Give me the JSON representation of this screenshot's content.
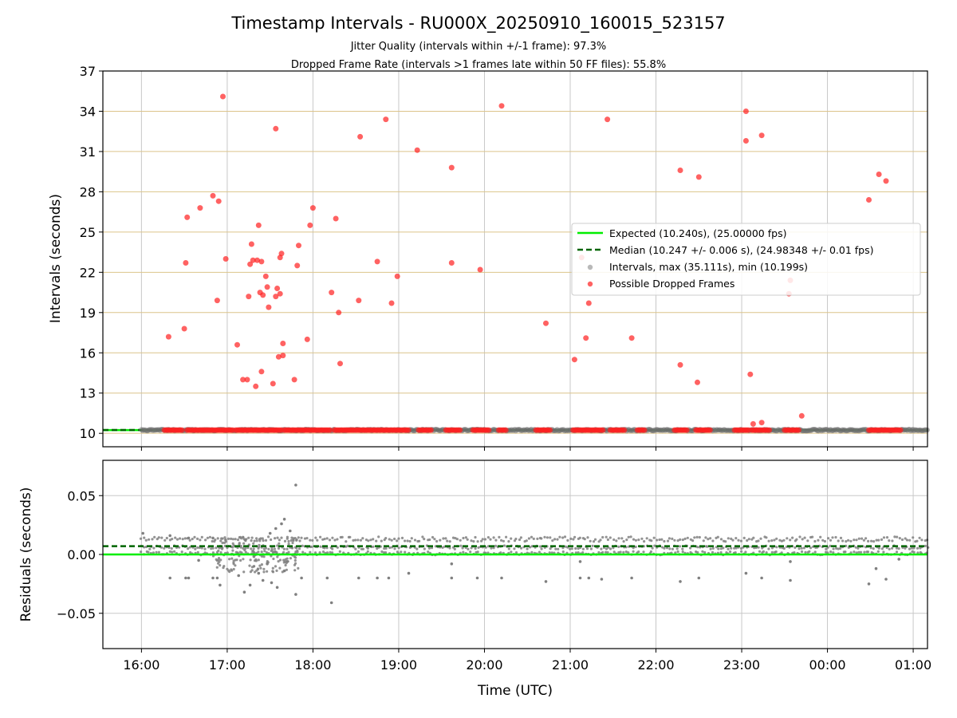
{
  "chart_data": {
    "type": "scatter",
    "title": "Timestamp Intervals - RU000X_20250910_160015_523157",
    "subtitle_lines": [
      "Jitter Quality (intervals within +/-1 frame): 97.3%",
      "Dropped Frame Rate (intervals >1 frames late within 50 FF files): 55.8%"
    ],
    "xlabel": "Time (UTC)",
    "x_range": [
      "15:33",
      "01:10"
    ],
    "x_ticks": [
      "16:00",
      "17:00",
      "18:00",
      "19:00",
      "20:00",
      "21:00",
      "22:00",
      "23:00",
      "00:00",
      "01:00"
    ],
    "top_panel": {
      "ylabel": "Intervals (seconds)",
      "ylim": [
        9.0,
        37.0
      ],
      "y_ticks": [
        "10",
        "13",
        "16",
        "19",
        "22",
        "25",
        "28",
        "31",
        "34",
        "37"
      ],
      "grid": "x grey, y goldenrod",
      "legend_position": "center-right",
      "expected_interval": 10.24,
      "median_interval": 10.247,
      "series": [
        {
          "name": "Expected (10.240s), (25.00000 fps)",
          "kind": "line",
          "color": "#00ee00",
          "y": 10.24
        },
        {
          "name": "Median (10.247 +/- 0.006 s), (24.98348 +/- 0.01 fps)",
          "kind": "dashed-line",
          "color": "#006400",
          "y": 10.247
        },
        {
          "name": "Intervals, max (35.111s), min (10.199s)",
          "kind": "scatter",
          "color": "#808080",
          "x_range": [
            "16:00",
            "01:10"
          ],
          "y": 10.24
        },
        {
          "name": "Possible Dropped Frames",
          "kind": "scatter",
          "color": "#ff2020",
          "points": [
            [
              "16:19",
              17.2
            ],
            [
              "16:30",
              17.8
            ],
            [
              "16:31",
              22.7
            ],
            [
              "16:32",
              26.1
            ],
            [
              "16:41",
              26.8
            ],
            [
              "16:50",
              27.7
            ],
            [
              "16:53",
              19.9
            ],
            [
              "16:54",
              27.3
            ],
            [
              "16:57",
              35.1
            ],
            [
              "16:59",
              23.0
            ],
            [
              "17:07",
              16.6
            ],
            [
              "17:11",
              14.0
            ],
            [
              "17:14",
              14.0
            ],
            [
              "17:15",
              20.2
            ],
            [
              "17:16",
              22.6
            ],
            [
              "17:17",
              24.1
            ],
            [
              "17:18",
              22.9
            ],
            [
              "17:20",
              13.5
            ],
            [
              "17:21",
              22.9
            ],
            [
              "17:22",
              25.5
            ],
            [
              "17:23",
              20.5
            ],
            [
              "17:24",
              22.8
            ],
            [
              "17:24",
              14.6
            ],
            [
              "17:25",
              20.3
            ],
            [
              "17:27",
              21.7
            ],
            [
              "17:28",
              20.9
            ],
            [
              "17:29",
              19.4
            ],
            [
              "17:32",
              13.7
            ],
            [
              "17:34",
              32.7
            ],
            [
              "17:34",
              20.2
            ],
            [
              "17:35",
              20.8
            ],
            [
              "17:36",
              15.7
            ],
            [
              "17:37",
              23.1
            ],
            [
              "17:37",
              20.4
            ],
            [
              "17:38",
              23.4
            ],
            [
              "17:39",
              16.7
            ],
            [
              "17:39",
              15.8
            ],
            [
              "17:47",
              14.0
            ],
            [
              "17:49",
              22.5
            ],
            [
              "17:50",
              24.0
            ],
            [
              "17:56",
              17.0
            ],
            [
              "17:58",
              25.5
            ],
            [
              "18:00",
              26.8
            ],
            [
              "18:13",
              20.5
            ],
            [
              "18:16",
              26.0
            ],
            [
              "18:18",
              19.0
            ],
            [
              "18:19",
              15.2
            ],
            [
              "18:33",
              32.1
            ],
            [
              "18:32",
              19.9
            ],
            [
              "18:45",
              22.8
            ],
            [
              "18:51",
              33.4
            ],
            [
              "18:55",
              19.7
            ],
            [
              "18:59",
              21.7
            ],
            [
              "19:13",
              31.1
            ],
            [
              "19:37",
              22.7
            ],
            [
              "19:37",
              29.8
            ],
            [
              "19:57",
              22.2
            ],
            [
              "20:12",
              34.4
            ],
            [
              "20:43",
              18.2
            ],
            [
              "21:03",
              15.5
            ],
            [
              "21:08",
              23.1
            ],
            [
              "21:11",
              17.1
            ],
            [
              "21:13",
              19.7
            ],
            [
              "21:26",
              33.4
            ],
            [
              "21:43",
              17.1
            ],
            [
              "22:17",
              29.6
            ],
            [
              "22:17",
              15.1
            ],
            [
              "22:30",
              29.1
            ],
            [
              "22:29",
              13.8
            ],
            [
              "23:03",
              34.0
            ],
            [
              "23:03",
              31.8
            ],
            [
              "23:06",
              14.4
            ],
            [
              "23:08",
              10.7
            ],
            [
              "23:14",
              32.2
            ],
            [
              "23:14",
              10.8
            ],
            [
              "23:33",
              20.4
            ],
            [
              "23:34",
              21.4
            ],
            [
              "23:42",
              11.3
            ],
            [
              "00:29",
              27.4
            ],
            [
              "00:36",
              29.3
            ],
            [
              "00:41",
              28.8
            ]
          ],
          "baseline_clusters": [
            [
              "16:16",
              "16:29"
            ],
            [
              "16:32",
              "17:04"
            ],
            [
              "17:06",
              "17:38"
            ],
            [
              "17:40",
              "18:12"
            ],
            [
              "18:15",
              "18:29"
            ],
            [
              "18:30",
              "19:08"
            ],
            [
              "19:14",
              "19:23"
            ],
            [
              "19:33",
              "19:44"
            ],
            [
              "19:52",
              "20:04"
            ],
            [
              "20:10",
              "20:15"
            ],
            [
              "20:36",
              "20:46"
            ],
            [
              "21:02",
              "21:24"
            ],
            [
              "21:28",
              "21:38"
            ],
            [
              "21:47",
              "21:52"
            ],
            [
              "22:13",
              "22:22"
            ],
            [
              "22:28",
              "22:38"
            ],
            [
              "22:55",
              "23:05"
            ],
            [
              "23:07",
              "23:20"
            ],
            [
              "23:30",
              "23:40"
            ],
            [
              "00:29",
              "00:52"
            ]
          ],
          "baseline_y": 10.24
        }
      ]
    },
    "bottom_panel": {
      "ylabel": "Residuals (seconds)",
      "ylim": [
        -0.08,
        0.08
      ],
      "y_ticks": [
        "−0.05",
        "0.00",
        "0.05"
      ],
      "expected_residual": 0.0,
      "median_residual": 0.007,
      "series_color": "#808080",
      "band_levels": [
        0.001,
        0.006,
        0.013
      ],
      "low_outliers": [
        [
          "16:20",
          -0.02
        ],
        [
          "16:31",
          -0.02
        ],
        [
          "16:33",
          -0.02
        ],
        [
          "16:50",
          -0.02
        ],
        [
          "16:53",
          -0.02
        ],
        [
          "16:55",
          -0.026
        ],
        [
          "17:08",
          -0.018
        ],
        [
          "17:12",
          -0.032
        ],
        [
          "17:16",
          -0.026
        ],
        [
          "17:22",
          -0.016
        ],
        [
          "17:25",
          -0.022
        ],
        [
          "17:31",
          -0.024
        ],
        [
          "17:35",
          -0.028
        ],
        [
          "17:40",
          -0.014
        ],
        [
          "17:48",
          -0.034
        ],
        [
          "17:52",
          -0.02
        ],
        [
          "18:10",
          -0.02
        ],
        [
          "18:13",
          -0.041
        ],
        [
          "18:32",
          -0.02
        ],
        [
          "18:45",
          -0.02
        ],
        [
          "18:53",
          -0.02
        ],
        [
          "19:07",
          -0.016
        ],
        [
          "19:37",
          -0.02
        ],
        [
          "19:55",
          -0.02
        ],
        [
          "20:12",
          -0.02
        ],
        [
          "20:43",
          -0.023
        ],
        [
          "21:07",
          -0.02
        ],
        [
          "21:13",
          -0.02
        ],
        [
          "21:22",
          -0.021
        ],
        [
          "21:43",
          -0.02
        ],
        [
          "22:17",
          -0.023
        ],
        [
          "22:30",
          -0.02
        ],
        [
          "23:03",
          -0.016
        ],
        [
          "23:14",
          -0.02
        ],
        [
          "23:34",
          -0.022
        ],
        [
          "00:29",
          -0.025
        ],
        [
          "00:34",
          -0.012
        ],
        [
          "00:41",
          -0.021
        ],
        [
          "16:40",
          -0.005
        ],
        [
          "17:28",
          -0.008
        ],
        [
          "17:42",
          -0.006
        ],
        [
          "19:37",
          -0.008
        ],
        [
          "21:07",
          -0.006
        ],
        [
          "23:34",
          -0.006
        ],
        [
          "00:50",
          -0.004
        ]
      ],
      "high_outliers": [
        [
          "16:01",
          0.018
        ],
        [
          "16:20",
          0.016
        ],
        [
          "16:33",
          0.014
        ],
        [
          "16:50",
          0.014
        ],
        [
          "17:30",
          0.018
        ],
        [
          "17:38",
          0.026
        ],
        [
          "17:40",
          0.03
        ],
        [
          "17:44",
          0.02
        ],
        [
          "17:48",
          0.059
        ],
        [
          "17:34",
          0.022
        ]
      ]
    }
  }
}
